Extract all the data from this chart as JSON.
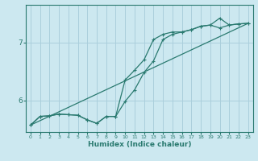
{
  "xlabel": "Humidex (Indice chaleur)",
  "ylabel": "",
  "bg_color": "#cce8f0",
  "grid_color": "#aacfdc",
  "line_color": "#2a7a70",
  "ylim": [
    5.45,
    7.65
  ],
  "xlim": [
    -0.5,
    23.5
  ],
  "yticks": [
    6,
    7
  ],
  "xticks": [
    0,
    1,
    2,
    3,
    4,
    5,
    6,
    7,
    8,
    9,
    10,
    11,
    12,
    13,
    14,
    15,
    16,
    17,
    18,
    19,
    20,
    21,
    22,
    23
  ],
  "series1_x": [
    0,
    1,
    2,
    3,
    4,
    5,
    6,
    7,
    8,
    9,
    10,
    11,
    12,
    13,
    14,
    15,
    16,
    17,
    18,
    19,
    20,
    21,
    22,
    23
  ],
  "series1_y": [
    5.57,
    5.72,
    5.73,
    5.76,
    5.75,
    5.74,
    5.66,
    5.6,
    5.72,
    5.72,
    5.98,
    6.18,
    6.48,
    6.68,
    7.05,
    7.14,
    7.18,
    7.22,
    7.28,
    7.3,
    7.42,
    7.3,
    7.32,
    7.33
  ],
  "series2_x": [
    0,
    1,
    2,
    3,
    4,
    5,
    6,
    7,
    8,
    9,
    10,
    11,
    12,
    13,
    14,
    15,
    16,
    17,
    18,
    19,
    20,
    21,
    22,
    23
  ],
  "series2_y": [
    5.57,
    5.72,
    5.73,
    5.76,
    5.75,
    5.74,
    5.66,
    5.6,
    5.72,
    5.72,
    6.35,
    6.52,
    6.7,
    7.05,
    7.14,
    7.18,
    7.18,
    7.22,
    7.28,
    7.3,
    7.25,
    7.3,
    7.32,
    7.33
  ],
  "series3_x": [
    0,
    23
  ],
  "series3_y": [
    5.57,
    7.33
  ]
}
